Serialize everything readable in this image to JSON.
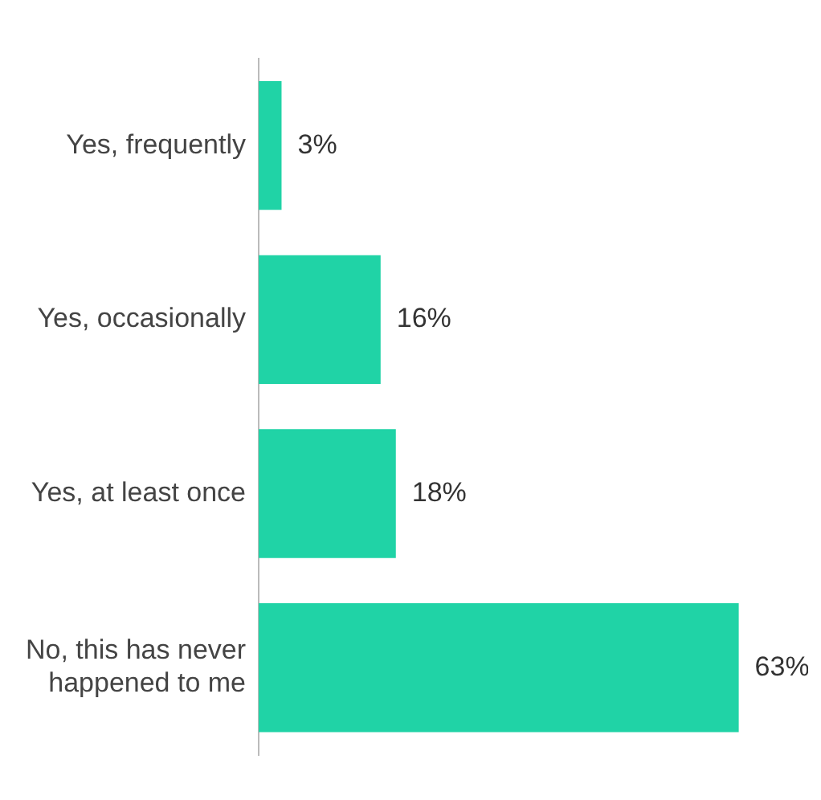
{
  "chart_data": {
    "type": "bar",
    "orientation": "horizontal",
    "categories": [
      "Yes, frequently",
      "Yes, occasionally",
      "Yes, at least once",
      "No, this has never happened to me"
    ],
    "values": [
      3,
      16,
      18,
      63
    ],
    "value_labels": [
      "3%",
      "16%",
      "18%",
      "63%"
    ],
    "color": "#20d3a6"
  }
}
